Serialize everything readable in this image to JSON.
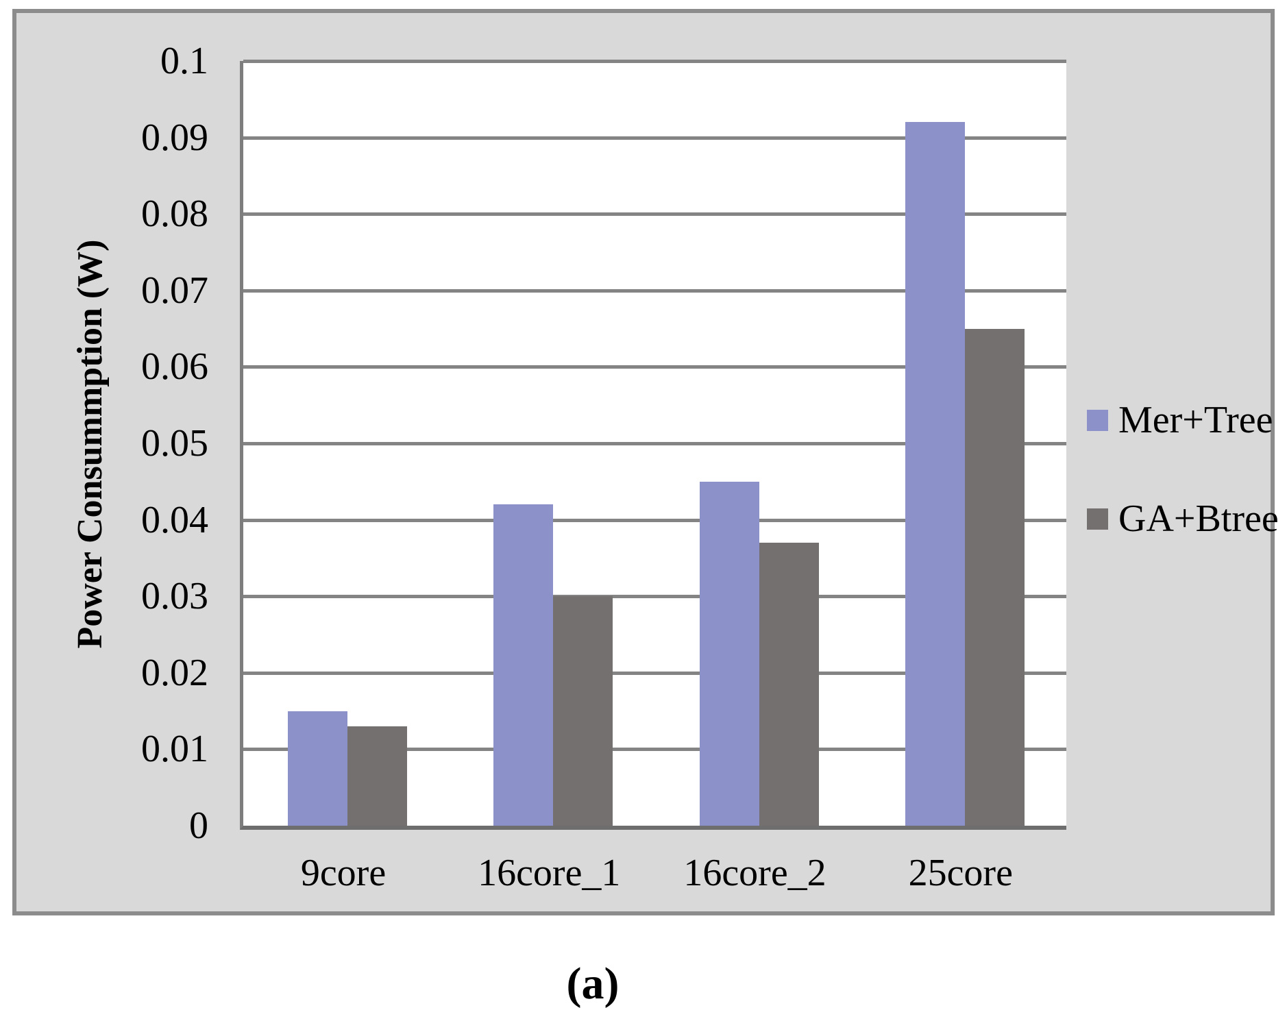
{
  "caption": "(a)",
  "colors": {
    "panel_background": "#d9d9d9",
    "panel_border": "#8c8c8c",
    "plot_background": "#ffffff",
    "gridline": "#848484",
    "axis_line": "#6e6e6e",
    "series_mer_tree": "#8d91c9",
    "series_ga_btree": "#747070",
    "text": "#000000"
  },
  "chart_data": {
    "type": "bar",
    "title": "",
    "xlabel": "",
    "ylabel": "Power Consummption (W)",
    "categories": [
      "9core",
      "16core_1",
      "16core_2",
      "25core"
    ],
    "series": [
      {
        "name": "Mer+Tree",
        "color": "#8d91c9",
        "values": [
          0.015,
          0.042,
          0.045,
          0.092
        ]
      },
      {
        "name": "GA+Btree",
        "color": "#747070",
        "values": [
          0.013,
          0.03,
          0.037,
          0.065
        ]
      }
    ],
    "ylim": [
      0,
      0.1
    ],
    "ytick_step": 0.01,
    "ytick_labels": [
      "0",
      "0.01",
      "0.02",
      "0.03",
      "0.04",
      "0.05",
      "0.06",
      "0.07",
      "0.08",
      "0.09",
      "0.1"
    ],
    "grid": true,
    "legend_position": "right"
  }
}
